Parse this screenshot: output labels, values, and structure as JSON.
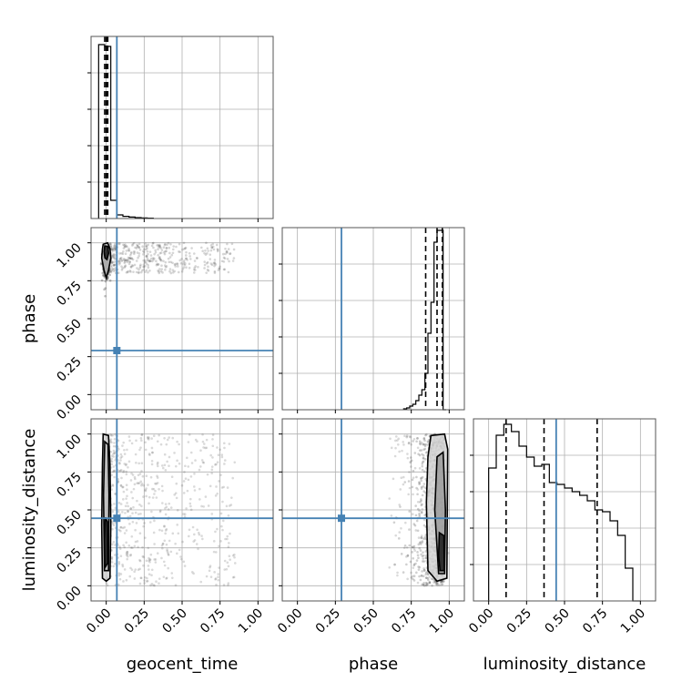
{
  "chart_data": {
    "type": "corner",
    "parameters": [
      "geocent_time",
      "phase",
      "luminosity_distance"
    ],
    "labels": {
      "geocent_time": "geocent_time",
      "phase": "phase",
      "luminosity_distance": "luminosity_distance"
    },
    "axis_range": [
      -0.1,
      1.1
    ],
    "tick_values": [
      0.0,
      0.25,
      0.5,
      0.75,
      1.0
    ],
    "tick_labels": [
      "0.00",
      "0.25",
      "0.50",
      "0.75",
      "1.00"
    ],
    "grid": true,
    "truth_color": "#4682b4",
    "truths": {
      "geocent_time": 0.07,
      "phase": 0.29,
      "luminosity_distance": 0.445
    },
    "quantiles": {
      "geocent_time": [
        -0.01,
        0.0,
        0.01
      ],
      "phase": [
        0.845,
        0.92,
        0.955
      ],
      "luminosity_distance": [
        0.115,
        0.365,
        0.715
      ]
    },
    "histograms": {
      "geocent_time": {
        "bin_edges": [
          -0.05,
          -0.01,
          0.03,
          0.07,
          0.11,
          0.15,
          0.19,
          0.23,
          0.27,
          0.31
        ],
        "counts": [
          0.955,
          0.945,
          0.1,
          0.02,
          0.012,
          0.008,
          0.005,
          0.003,
          0.002
        ]
      },
      "phase": {
        "bin_edges": [
          0.7,
          0.72,
          0.74,
          0.76,
          0.78,
          0.8,
          0.82,
          0.84,
          0.86,
          0.88,
          0.9,
          0.92,
          0.94,
          0.96,
          0.98
        ],
        "counts": [
          0.005,
          0.01,
          0.02,
          0.03,
          0.05,
          0.08,
          0.11,
          0.2,
          0.42,
          0.59,
          0.92,
          0.985,
          0.985,
          0.0
        ]
      },
      "luminosity_distance": {
        "bin_edges": [
          0.0,
          0.05,
          0.1,
          0.15,
          0.2,
          0.25,
          0.3,
          0.35,
          0.4,
          0.45,
          0.5,
          0.55,
          0.6,
          0.65,
          0.7,
          0.75,
          0.8,
          0.85,
          0.9,
          0.95,
          1.0
        ],
        "counts": [
          0.73,
          0.91,
          0.97,
          0.93,
          0.85,
          0.79,
          0.74,
          0.75,
          0.65,
          0.64,
          0.62,
          0.6,
          0.58,
          0.55,
          0.5,
          0.49,
          0.44,
          0.36,
          0.18,
          0.0
        ]
      }
    },
    "samples_2d": {
      "phase_vs_geocent_time": {
        "x_core": [
          -0.02,
          0.02
        ],
        "y_core": [
          0.75,
          1.0
        ],
        "x_tail": [
          0.0,
          0.85
        ],
        "y_tail": [
          0.8,
          1.0
        ]
      },
      "luminosity_distance_vs_geocent_time": {
        "x_core": [
          -0.02,
          0.02
        ],
        "y_core": [
          0.0,
          1.0
        ],
        "x_tail": [
          0.0,
          0.85
        ],
        "y_tail": [
          0.0,
          1.0
        ]
      },
      "luminosity_distance_vs_phase": {
        "x_core": [
          0.8,
          1.0
        ],
        "y_core": [
          0.0,
          1.0
        ]
      }
    }
  }
}
